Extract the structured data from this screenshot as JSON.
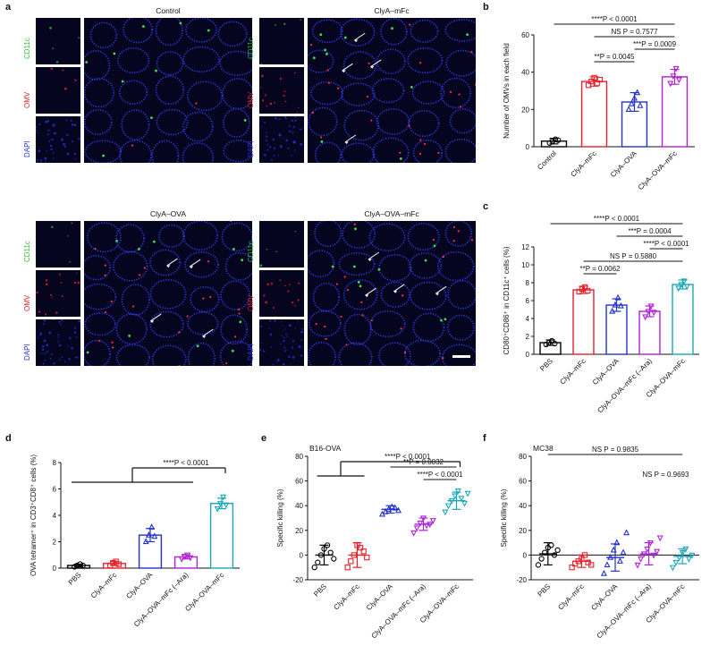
{
  "panel_letters": [
    "a",
    "b",
    "c",
    "d",
    "e",
    "f"
  ],
  "micrographs": [
    {
      "title": "Control",
      "channels": [
        "CD11c",
        "OMV",
        "DAPI"
      ]
    },
    {
      "title": "ClyA–mFc",
      "channels": [
        "CD11c",
        "OMV",
        "DAPI"
      ]
    },
    {
      "title": "ClyA–OVA",
      "channels": [
        "CD11c",
        "OMV",
        "DAPI"
      ]
    },
    {
      "title": "ClyA–OVA–mFc",
      "channels": [
        "CD11c",
        "OMV",
        "DAPI"
      ]
    }
  ],
  "colors": {
    "PBS": "#000000",
    "Control": "#000000",
    "mFc": "#e8202a",
    "OVA": "#2233cc",
    "OVAmFcAra": "#b020d8",
    "OVAmFc": "#18a8b8",
    "CD11c": "#2fbf3a",
    "OMV": "#d4202a",
    "DAPI": "#2233dd"
  },
  "chart_data": [
    {
      "panel": "b",
      "type": "bar",
      "ylabel": "Number of OMVs in each field",
      "ylim": [
        0,
        60
      ],
      "yticks": [
        0,
        20,
        40,
        60
      ],
      "categories": [
        "Control",
        "ClyA–mFc",
        "ClyA–OVA",
        "ClyA–OVA–mFc"
      ],
      "values": [
        3,
        35,
        24,
        37.5
      ],
      "errors": [
        1.5,
        2.5,
        5,
        4
      ],
      "points": [
        [
          2,
          3,
          4,
          3.5
        ],
        [
          33,
          35,
          37,
          34,
          36
        ],
        [
          20,
          23,
          26,
          29,
          22
        ],
        [
          34,
          38,
          42,
          36
        ]
      ],
      "colors": [
        "#000000",
        "#e8202a",
        "#2233cc",
        "#b020d8"
      ],
      "markers": [
        "circle",
        "square",
        "triangle",
        "triangle-down"
      ],
      "comparisons": [
        {
          "from": 0,
          "to": 3,
          "level": 1,
          "text": "****P < 0.0001"
        },
        {
          "from": 1,
          "to": 3,
          "level": 2,
          "text": "NS P = 0.7577"
        },
        {
          "from": 2,
          "to": 3,
          "level": 3,
          "text": "***P = 0.0009"
        },
        {
          "from": 1,
          "to": 2,
          "level": 4,
          "text": "**P = 0.0045"
        }
      ]
    },
    {
      "panel": "c",
      "type": "bar",
      "ylabel": "CD80⁺CD86⁺ in CD11c⁺ cells (%)",
      "ylim": [
        0,
        12
      ],
      "yticks": [
        0,
        2,
        4,
        6,
        8,
        10,
        12
      ],
      "categories": [
        "PBS",
        "ClyA–mFc",
        "ClyA–OVA",
        "ClyA–OVA–mFc (–Ara)",
        "ClyA–OVA–mFc"
      ],
      "values": [
        1.3,
        7.2,
        5.5,
        4.8,
        7.8
      ],
      "errors": [
        0.3,
        0.4,
        0.7,
        0.6,
        0.5
      ],
      "points": [
        [
          1.1,
          1.3,
          1.5,
          1.2
        ],
        [
          7.0,
          7.3,
          7.5,
          7.1
        ],
        [
          4.8,
          5.5,
          6.3,
          5.4
        ],
        [
          4.2,
          4.8,
          5.4,
          4.7
        ],
        [
          7.4,
          7.8,
          8.2,
          7.6
        ]
      ],
      "colors": [
        "#000000",
        "#e8202a",
        "#2233cc",
        "#b020d8",
        "#18a8b8"
      ],
      "markers": [
        "circle",
        "square",
        "triangle",
        "triangle-down",
        "triangle-down"
      ],
      "comparisons": [
        {
          "from": 0,
          "to": 4,
          "level": 1,
          "text": "****P < 0.0001"
        },
        {
          "from": 2,
          "to": 4,
          "level": 2,
          "text": "***P = 0.0004"
        },
        {
          "from": 3,
          "to": 4,
          "level": 3,
          "text": "****P < 0.0001"
        },
        {
          "from": 1,
          "to": 4,
          "level": 4,
          "text": "NS P = 0.5880"
        },
        {
          "from": 1,
          "to": 2,
          "level": 5,
          "text": "**P = 0.0062"
        }
      ]
    },
    {
      "panel": "d",
      "type": "bar",
      "ylabel": "OVA tetramer⁺ in CD3⁺CD8⁺ cells (%)",
      "ylim": [
        0,
        8
      ],
      "yticks": [
        0,
        2,
        4,
        6,
        8
      ],
      "categories": [
        "PBS",
        "ClyA–mFc",
        "ClyA–OVA",
        "ClyA–OVA–mFc (–Ara)",
        "ClyA–OVA–mFc"
      ],
      "values": [
        0.2,
        0.35,
        2.5,
        0.85,
        4.9
      ],
      "errors": [
        0.1,
        0.15,
        0.5,
        0.15,
        0.4
      ],
      "points": [
        [
          0.1,
          0.2,
          0.3,
          0.2
        ],
        [
          0.2,
          0.4,
          0.5,
          0.3
        ],
        [
          2.0,
          2.5,
          3.1,
          2.4
        ],
        [
          0.7,
          0.9,
          1.0,
          0.8
        ],
        [
          4.5,
          4.9,
          5.4,
          4.8
        ]
      ],
      "colors": [
        "#000000",
        "#e8202a",
        "#2233cc",
        "#b020d8",
        "#18a8b8"
      ],
      "markers": [
        "circle",
        "square",
        "triangle",
        "triangle-down",
        "triangle-down"
      ],
      "bracket": {
        "left_from": 0,
        "left_to": 3,
        "right": 4,
        "text": "****P < 0.0001"
      }
    },
    {
      "panel": "e",
      "type": "scatter",
      "title": "B16-OVA",
      "ylabel": "Specific killing (%)",
      "ylim": [
        -20,
        80
      ],
      "yticks": [
        -20,
        0,
        20,
        40,
        60,
        80
      ],
      "categories": [
        "PBS",
        "ClyA–mFc",
        "ClyA–OVA",
        "ClyA–OVA–mFc (–Ara)",
        "ClyA–OVA–mFc"
      ],
      "values": [
        0,
        0,
        37,
        25,
        44
      ],
      "errors": [
        8,
        10,
        3,
        5,
        7
      ],
      "points": [
        [
          -10,
          -6,
          0,
          5,
          8,
          2,
          -3
        ],
        [
          -10,
          -5,
          0,
          8,
          6,
          3,
          -2
        ],
        [
          33,
          35,
          37,
          39,
          38,
          36
        ],
        [
          18,
          22,
          26,
          30,
          24,
          25,
          28
        ],
        [
          35,
          40,
          44,
          48,
          52,
          46,
          42,
          50
        ]
      ],
      "colors": [
        "#000000",
        "#e8202a",
        "#2233cc",
        "#b020d8",
        "#18a8b8"
      ],
      "markers": [
        "circle",
        "square",
        "triangle",
        "triangle-down",
        "triangle-down"
      ],
      "comparisons": [
        {
          "from": 2,
          "to": 4,
          "level": 2,
          "text": "**P = 0.0032"
        },
        {
          "from": 3,
          "to": 4,
          "level": 3,
          "text": "****P < 0.0001"
        }
      ],
      "bracket": {
        "left_from": 0,
        "left_to": 1,
        "right": 4,
        "text": "****P < 0.0001"
      }
    },
    {
      "panel": "f",
      "type": "scatter",
      "title": "MC38",
      "ylabel": "Specific killing (%)",
      "ylim": [
        -20,
        80
      ],
      "yticks": [
        -20,
        0,
        20,
        40,
        60,
        80
      ],
      "categories": [
        "PBS",
        "ClyA–mFc",
        "ClyA–OVA",
        "ClyA–OVA–mFc (–Ara)",
        "ClyA–OVA–mFc"
      ],
      "values": [
        1,
        -5,
        -2,
        1,
        -1
      ],
      "errors": [
        9,
        5,
        11,
        9,
        6
      ],
      "points": [
        [
          -8,
          -3,
          2,
          6,
          8,
          0,
          4
        ],
        [
          -10,
          -7,
          -5,
          -3,
          0,
          -6,
          -8
        ],
        [
          -15,
          -8,
          -2,
          4,
          10,
          -5,
          2,
          18
        ],
        [
          -8,
          -3,
          1,
          5,
          10,
          0,
          3,
          14
        ],
        [
          -10,
          -6,
          -2,
          2,
          5,
          -3,
          0
        ]
      ],
      "colors": [
        "#000000",
        "#e8202a",
        "#2233cc",
        "#b020d8",
        "#18a8b8"
      ],
      "markers": [
        "circle",
        "square",
        "triangle",
        "triangle-down",
        "triangle-down"
      ],
      "comparisons": [
        {
          "from": 0,
          "to": 4,
          "level": 1,
          "text": "NS P = 0.9835"
        },
        {
          "from": 3,
          "to": 4,
          "level": 3,
          "text": "NS P = 0.9693",
          "no_line": true
        }
      ],
      "zero_line": true
    }
  ]
}
